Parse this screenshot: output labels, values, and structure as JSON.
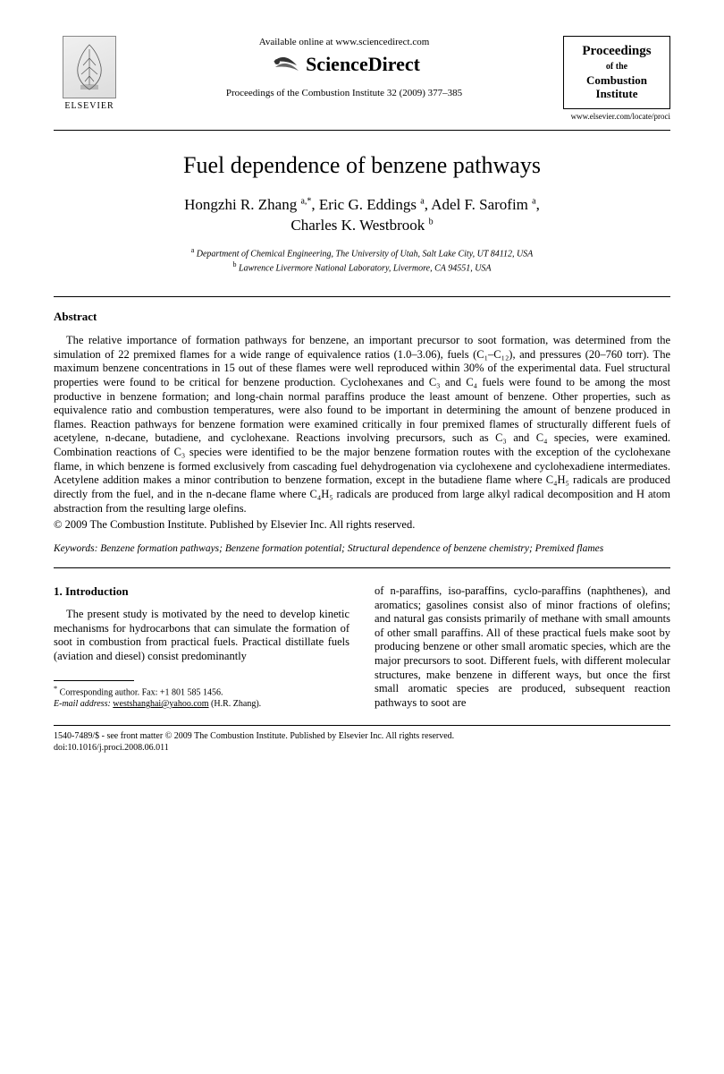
{
  "header": {
    "publisher_name": "ELSEVIER",
    "available_text": "Available online at www.sciencedirect.com",
    "platform_name": "ScienceDirect",
    "citation": "Proceedings of the Combustion Institute 32 (2009) 377–385",
    "journal_box": {
      "line1": "Proceedings",
      "of": "of the",
      "line2": "Combustion",
      "line3": "Institute"
    },
    "journal_url": "www.elsevier.com/locate/proci"
  },
  "title": "Fuel dependence of benzene pathways",
  "authors_html": "Hongzhi R. Zhang <sup>a,*</sup>, Eric G. Eddings <sup>a</sup>, Adel F. Sarofim <sup>a</sup>,<br>Charles K. Westbrook <sup>b</sup>",
  "affiliations": [
    {
      "sup": "a",
      "text": "Department of Chemical Engineering, The University of Utah, Salt Lake City, UT 84112, USA"
    },
    {
      "sup": "b",
      "text": "Lawrence Livermore National Laboratory, Livermore, CA 94551, USA"
    }
  ],
  "abstract": {
    "heading": "Abstract",
    "body": "The relative importance of formation pathways for benzene, an important precursor to soot formation, was determined from the simulation of 22 premixed flames for a wide range of equivalence ratios (1.0–3.06), fuels (C₁–C₁₂), and pressures (20–760 torr). The maximum benzene concentrations in 15 out of these flames were well reproduced within 30% of the experimental data. Fuel structural properties were found to be critical for benzene production. Cyclohexanes and C₃ and C₄ fuels were found to be among the most productive in benzene formation; and long-chain normal paraffins produce the least amount of benzene. Other properties, such as equivalence ratio and combustion temperatures, were also found to be important in determining the amount of benzene produced in flames. Reaction pathways for benzene formation were examined critically in four premixed flames of structurally different fuels of acetylene, n-decane, butadiene, and cyclohexane. Reactions involving precursors, such as C₃ and C₄ species, were examined. Combination reactions of C₃ species were identified to be the major benzene formation routes with the exception of the cyclohexane flame, in which benzene is formed exclusively from cascading fuel dehydrogenation via cyclohexene and cyclohexadiene intermediates. Acetylene addition makes a minor contribution to benzene formation, except in the butadiene flame where C₄H₅ radicals are produced directly from the fuel, and in the n-decane flame where C₄H₅ radicals are produced from large alkyl radical decomposition and H atom abstraction from the resulting large olefins.",
    "copyright": "© 2009 The Combustion Institute. Published by Elsevier Inc. All rights reserved."
  },
  "keywords": {
    "label": "Keywords:",
    "text": "Benzene formation pathways; Benzene formation potential; Structural dependence of benzene chemistry; Premixed flames"
  },
  "intro": {
    "heading": "1. Introduction",
    "col1": "The present study is motivated by the need to develop kinetic mechanisms for hydrocarbons that can simulate the formation of soot in combustion from practical fuels. Practical distillate fuels (aviation and diesel) consist predominantly",
    "col2": "of n-paraffins, iso-paraffins, cyclo-paraffins (naphthenes), and aromatics; gasolines consist also of minor fractions of olefins; and natural gas consists primarily of methane with small amounts of other small paraffins. All of these practical fuels make soot by producing benzene or other small aromatic species, which are the major precursors to soot. Different fuels, with different molecular structures, make benzene in different ways, but once the first small aromatic species are produced, subsequent reaction pathways to soot are"
  },
  "footnote": {
    "corresponding": "Corresponding author. Fax: +1 801 585 1456.",
    "email_label": "E-mail address:",
    "email": "westshanghai@yahoo.com",
    "email_attr": "(H.R. Zhang)."
  },
  "footer": {
    "line1": "1540-7489/$ - see front matter © 2009 The Combustion Institute. Published by Elsevier Inc. All rights reserved.",
    "line2": "doi:10.1016/j.proci.2008.06.011"
  },
  "colors": {
    "text": "#000000",
    "bg": "#ffffff",
    "rule": "#000000",
    "logo_fill": "#888888"
  }
}
